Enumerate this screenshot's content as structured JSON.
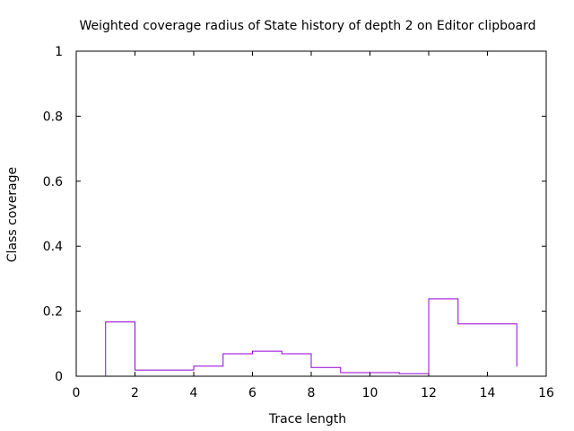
{
  "chart_data": {
    "type": "line",
    "title": "Weighted coverage radius of State history of depth 2 on Editor clipboard",
    "xlabel": "Trace length",
    "ylabel": "Class coverage",
    "xlim": [
      0,
      16
    ],
    "ylim": [
      0,
      1
    ],
    "xticks": [
      0,
      2,
      4,
      6,
      8,
      10,
      12,
      14,
      16
    ],
    "xtick_labels": [
      "0",
      "2",
      "4",
      "6",
      "8",
      "10",
      "12",
      "14",
      "16"
    ],
    "yticks": [
      0,
      0.2,
      0.4,
      0.6,
      0.8,
      1
    ],
    "ytick_labels": [
      "0",
      "0.2",
      "0.4",
      "0.6",
      "0.8",
      "1"
    ],
    "grid": false,
    "legend": "none",
    "line_style": "histogram-steps",
    "series": [
      {
        "color": "#9400d3",
        "x": [
          1,
          2,
          3,
          4,
          5,
          6,
          7,
          8,
          9,
          10,
          11,
          12,
          13,
          14,
          15
        ],
        "y": [
          0.167,
          0.019,
          0.019,
          0.031,
          0.069,
          0.077,
          0.069,
          0.027,
          0.011,
          0.011,
          0.008,
          0.238,
          0.161,
          0.161,
          0.03
        ]
      }
    ]
  }
}
